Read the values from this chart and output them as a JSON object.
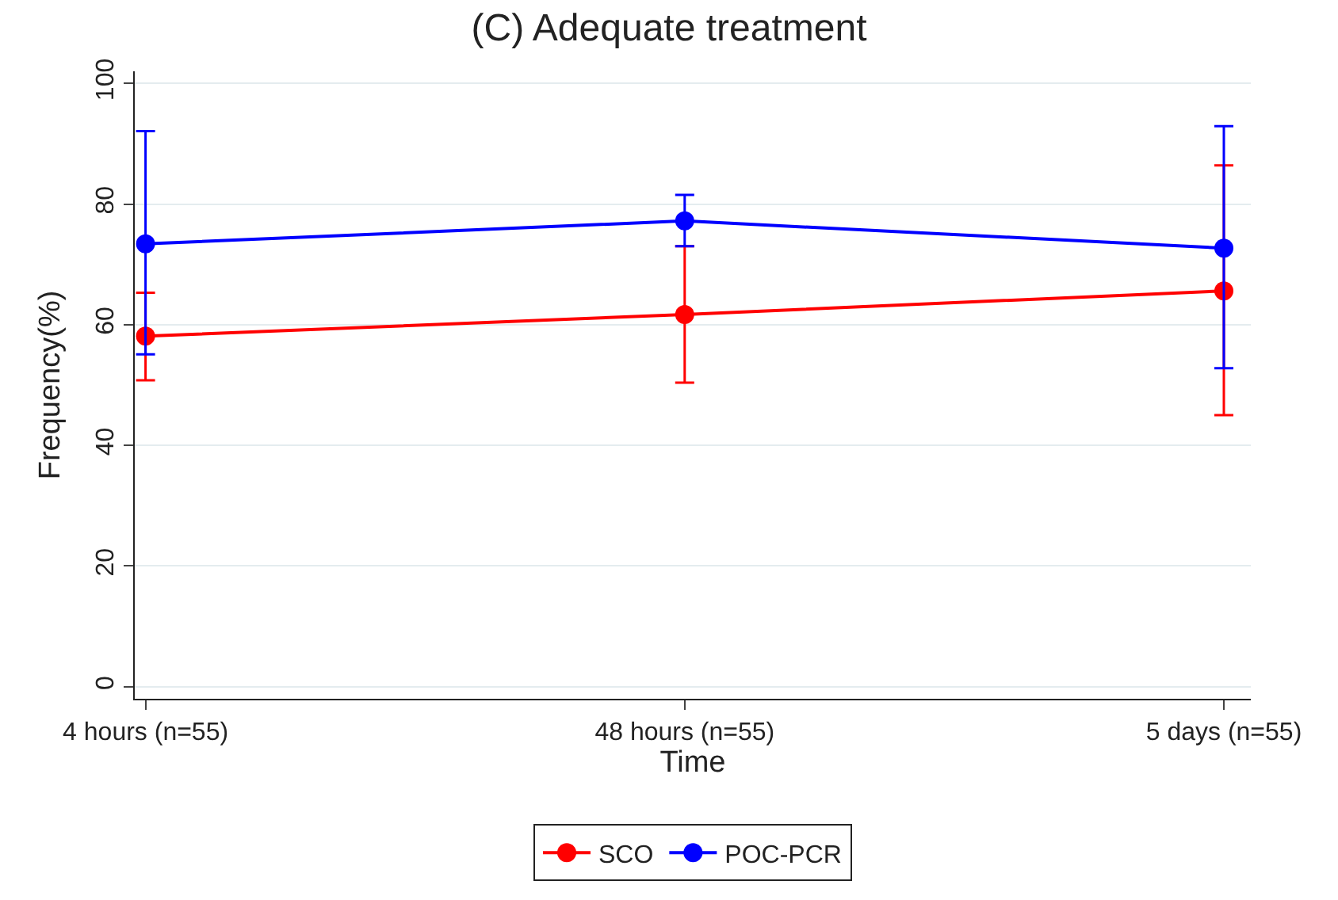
{
  "chart_data": {
    "type": "line",
    "title": "(C) Adequate treatment",
    "xlabel": "Time",
    "ylabel": "Frequency(%)",
    "categories": [
      "4 hours (n=55)",
      "48 hours (n=55)",
      "5 days (n=55)"
    ],
    "series": [
      {
        "name": "SCO",
        "color": "#ff0000",
        "values": [
          58.1,
          61.7,
          65.6
        ],
        "errors": [
          [
            50.8,
            65.3
          ],
          [
            50.4,
            73.0
          ],
          [
            45.0,
            86.4
          ]
        ]
      },
      {
        "name": "POC-PCR",
        "color": "#0000ff",
        "values": [
          73.4,
          77.2,
          72.7
        ],
        "errors": [
          [
            55.1,
            92.1
          ],
          [
            73.0,
            81.5
          ],
          [
            52.8,
            92.9
          ]
        ]
      }
    ],
    "ylim": [
      -2,
      102
    ],
    "yticks": [
      0,
      20,
      40,
      60,
      80,
      100
    ],
    "grid": "y",
    "legend": "bottom",
    "marker": "circle",
    "line_style": "solid"
  }
}
